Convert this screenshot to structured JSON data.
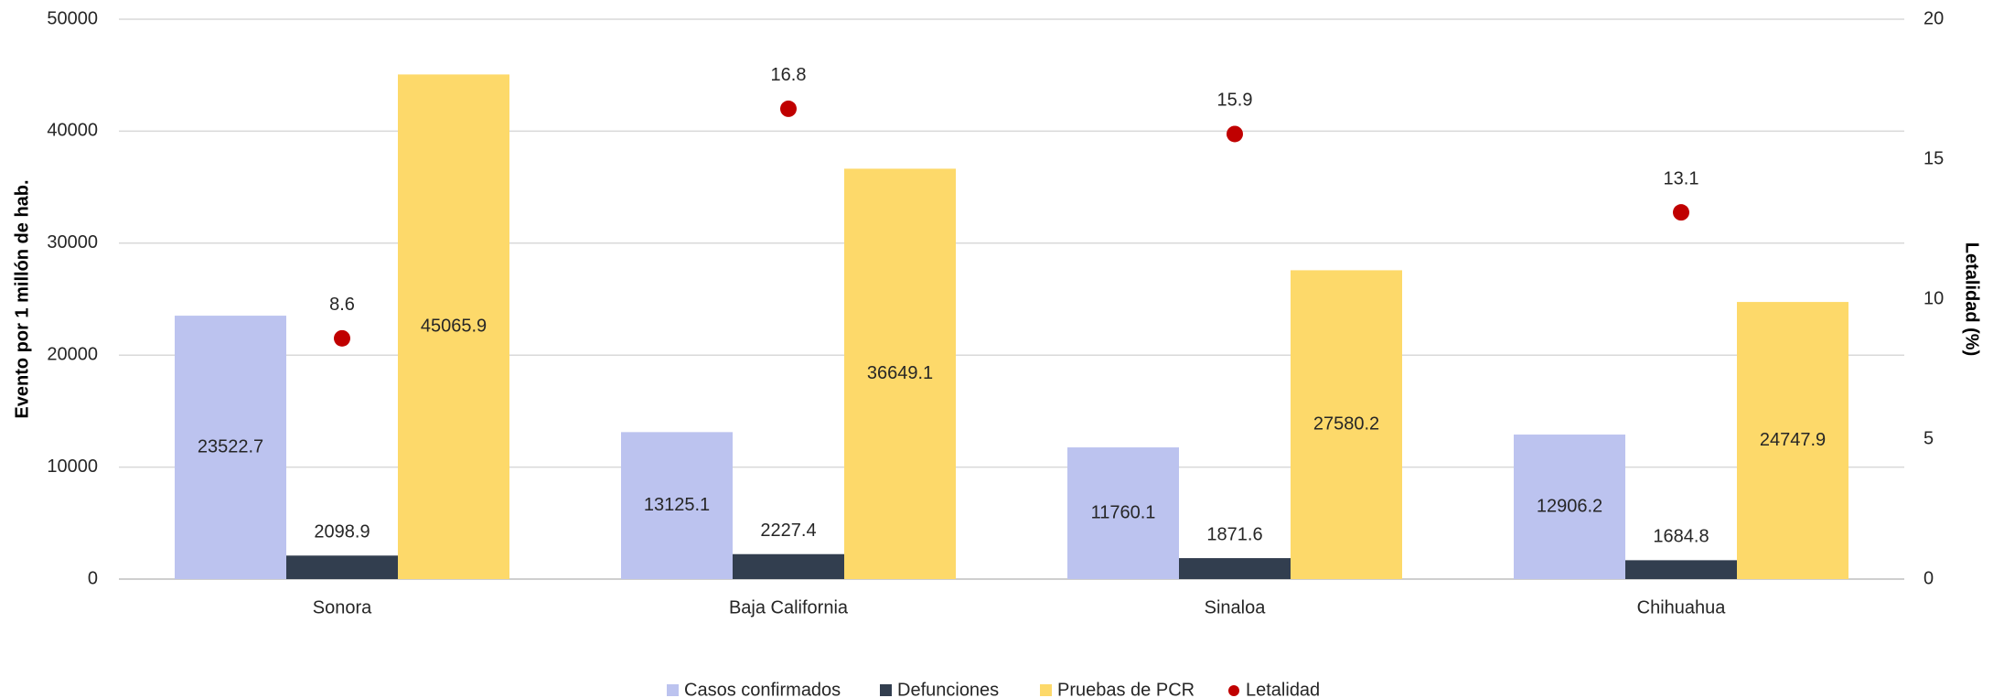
{
  "chart_data": {
    "type": "bar",
    "categories": [
      "Sonora",
      "Baja California",
      "Sinaloa",
      "Chihuahua"
    ],
    "series": [
      {
        "name": "Casos confirmados",
        "color": "#bcc3ef",
        "values": [
          23522.7,
          13125.1,
          11760.1,
          12906.2
        ]
      },
      {
        "name": "Defunciones",
        "color": "#323e4f",
        "values": [
          2098.9,
          2227.4,
          1871.6,
          1684.8
        ]
      },
      {
        "name": "Pruebas de PCR",
        "color": "#fdd96a",
        "values": [
          45065.9,
          36649.1,
          27580.2,
          24747.9
        ]
      },
      {
        "name": "Letalidad",
        "color": "#c00000",
        "values": [
          8.6,
          16.8,
          15.9,
          13.1
        ],
        "axis": "y2",
        "type": "scatter"
      }
    ],
    "ylabel": "Evento por 1 millón de hab.",
    "y2label": "Letalidad (%)",
    "ylim": [
      0,
      50000
    ],
    "yticks": [
      0,
      10000,
      20000,
      30000,
      40000,
      50000
    ],
    "y2lim": [
      0,
      20
    ],
    "y2ticks": [
      0,
      5,
      10,
      15,
      20
    ],
    "grid": true,
    "legend": "bottom"
  }
}
